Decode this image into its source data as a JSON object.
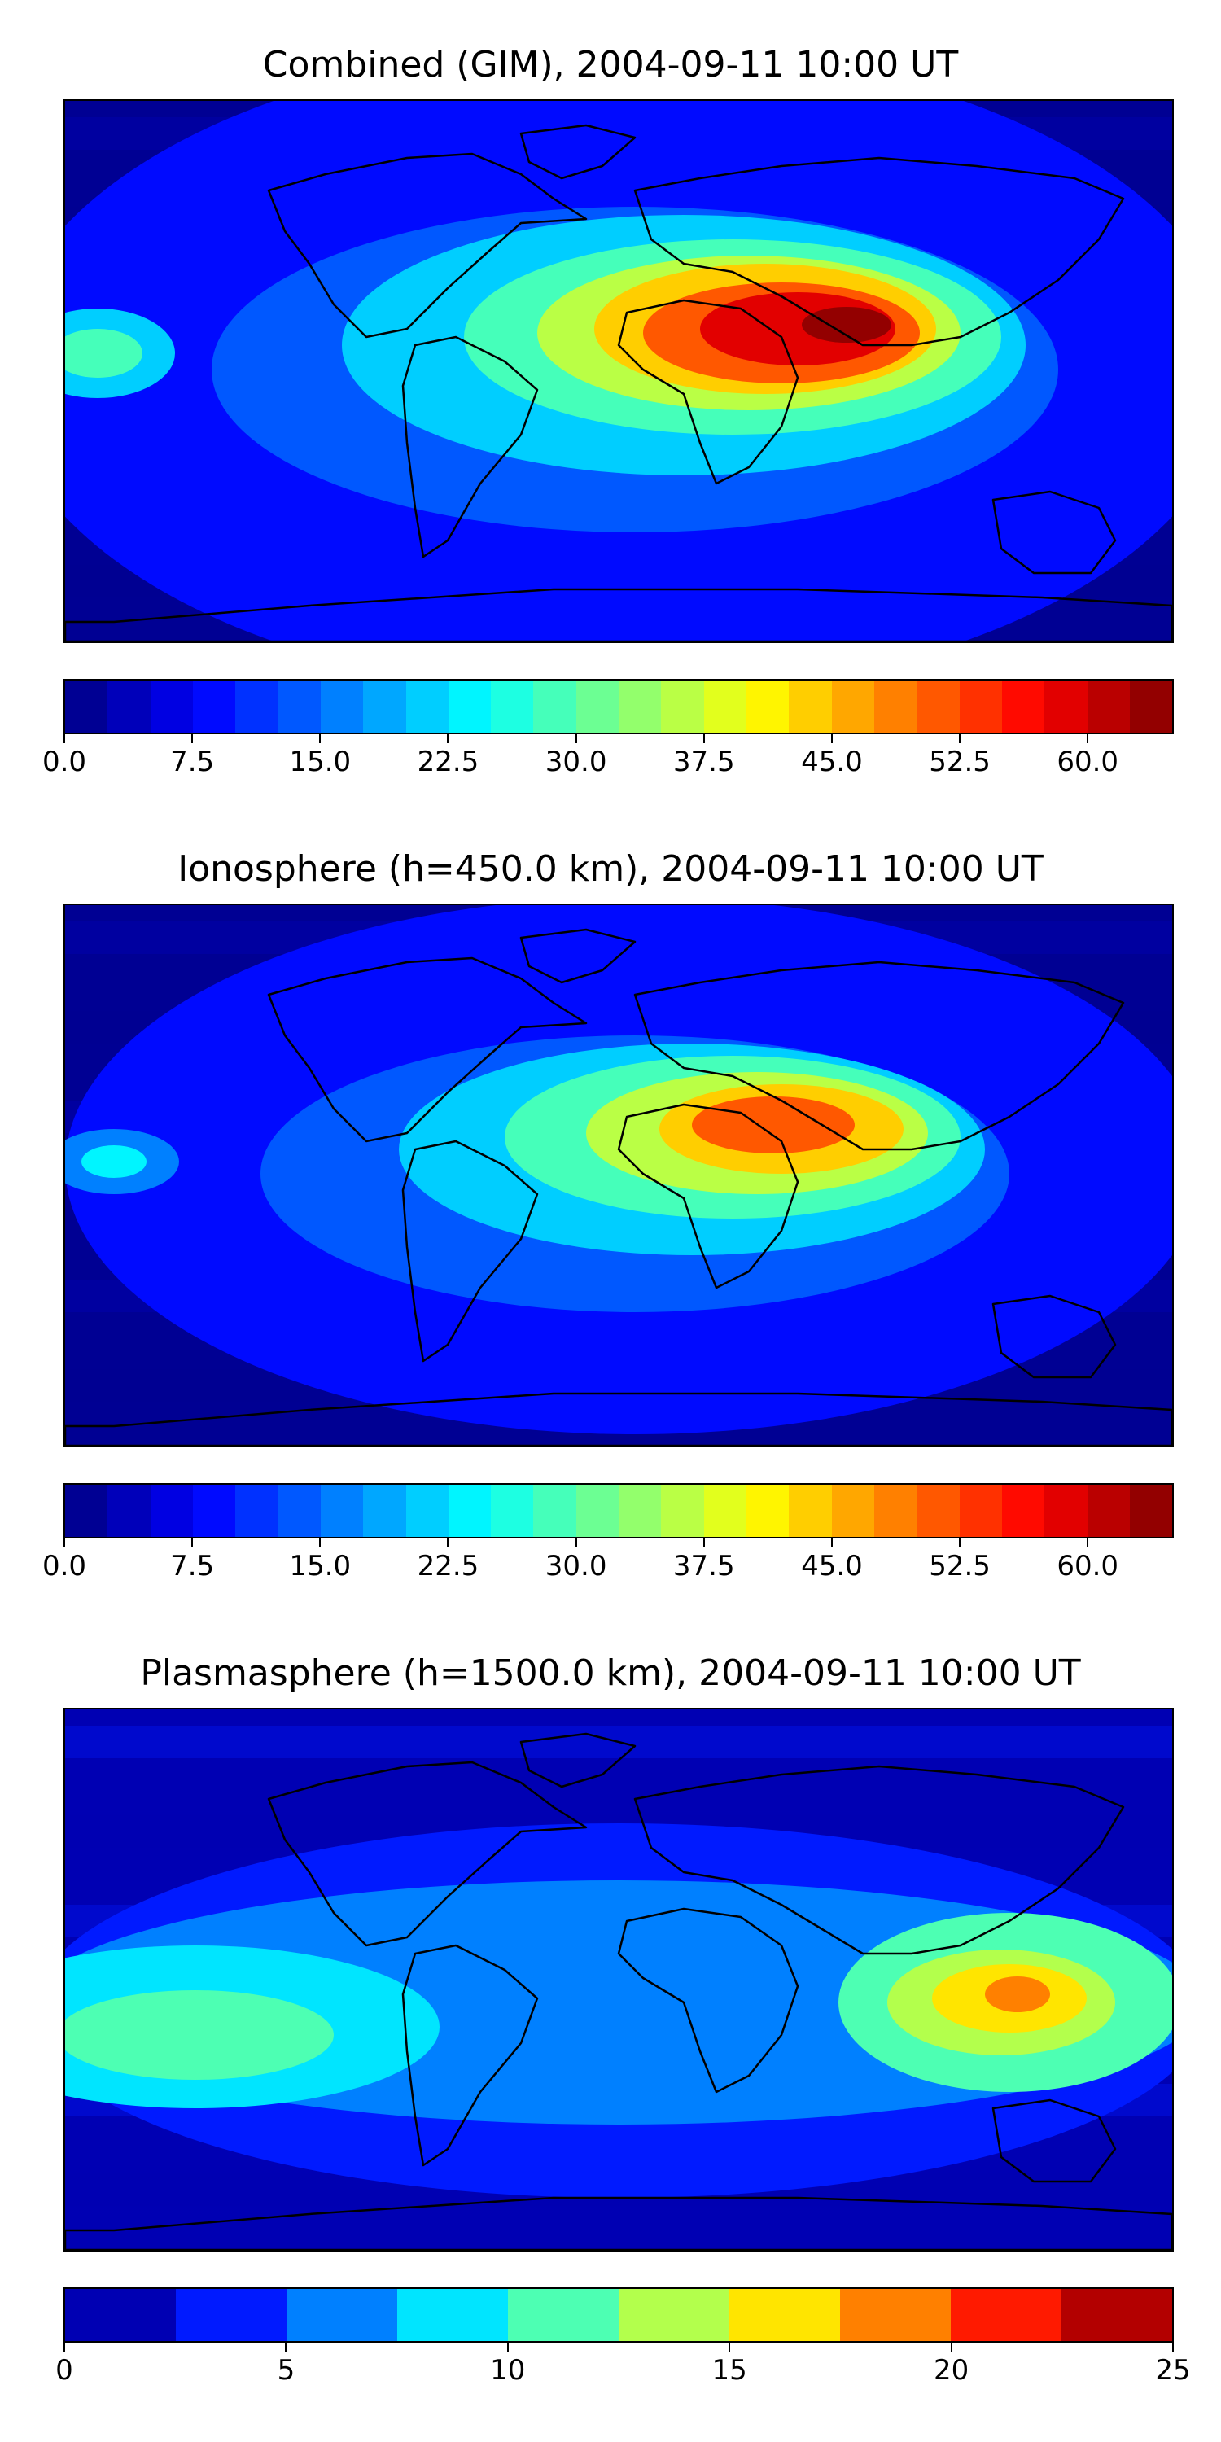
{
  "chart_data": [
    {
      "type": "heatmap",
      "title": "Combined (GIM), 2004-09-11 10:00 UT",
      "colorbar": {
        "levels": [
          0,
          2.5,
          5,
          7.5,
          10,
          12.5,
          15,
          17.5,
          20,
          22.5,
          25,
          27.5,
          30,
          32.5,
          35,
          37.5,
          40,
          42.5,
          45,
          47.5,
          50,
          52.5,
          55,
          57.5,
          60,
          62.5,
          65
        ],
        "ticks": [
          "0.0",
          "7.5",
          "15.0",
          "22.5",
          "30.0",
          "37.5",
          "45.0",
          "52.5",
          "60.0"
        ],
        "tick_values": [
          0,
          7.5,
          15,
          22.5,
          30,
          37.5,
          45,
          52.5,
          60
        ],
        "vmin": 0,
        "vmax": 65
      },
      "features": {
        "max_region": "India / Arabian Sea / southern Asia",
        "approx_max": 62,
        "background_min": 2
      }
    },
    {
      "type": "heatmap",
      "title": "Ionosphere  (h=450.0 km), 2004-09-11 10:00 UT",
      "colorbar": {
        "levels": [
          0,
          2.5,
          5,
          7.5,
          10,
          12.5,
          15,
          17.5,
          20,
          22.5,
          25,
          27.5,
          30,
          32.5,
          35,
          37.5,
          40,
          42.5,
          45,
          47.5,
          50,
          52.5,
          55,
          57.5,
          60,
          62.5,
          65
        ],
        "ticks": [
          "0.0",
          "7.5",
          "15.0",
          "22.5",
          "30.0",
          "37.5",
          "45.0",
          "52.5",
          "60.0"
        ],
        "tick_values": [
          0,
          7.5,
          15,
          22.5,
          30,
          37.5,
          45,
          52.5,
          60
        ],
        "vmin": 0,
        "vmax": 65
      },
      "features": {
        "max_region": "Arabian Peninsula / northern India",
        "approx_max": 52,
        "background_min": 1
      }
    },
    {
      "type": "heatmap",
      "title": "Plasmasphere (h=1500.0 km), 2004-09-11 10:00 UT",
      "colorbar": {
        "levels": [
          0,
          2.5,
          5,
          7.5,
          10,
          12.5,
          15,
          17.5,
          20,
          22.5,
          25
        ],
        "ticks": [
          "0",
          "5",
          "10",
          "15",
          "20",
          "25"
        ],
        "tick_values": [
          0,
          5,
          10,
          15,
          20,
          25
        ],
        "vmin": 0,
        "vmax": 25
      },
      "features": {
        "max_region": "Philippines / South China Sea",
        "approx_max": 21,
        "background_min": 1
      }
    }
  ]
}
